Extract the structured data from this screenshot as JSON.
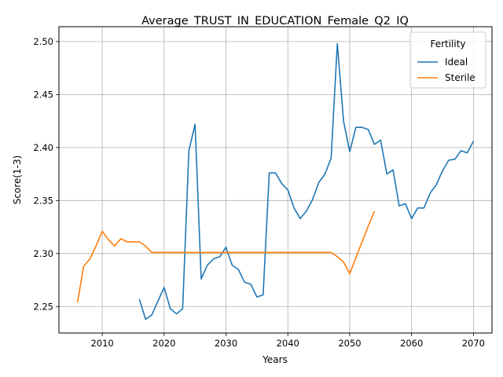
{
  "chart_data": {
    "type": "line",
    "title": "Average_TRUST_IN_EDUCATION_Female_Q2_IQ",
    "xlabel": "Years",
    "ylabel": "Score(1-3)",
    "xlim": [
      2003,
      2073
    ],
    "ylim": [
      2.225,
      2.514
    ],
    "xticks": [
      2010,
      2020,
      2030,
      2040,
      2050,
      2060,
      2070
    ],
    "yticks": [
      2.25,
      2.3,
      2.35,
      2.4,
      2.45,
      2.5
    ],
    "xtick_labels": [
      "2010",
      "2020",
      "2030",
      "2040",
      "2050",
      "2060",
      "2070"
    ],
    "ytick_labels": [
      "2.25",
      "2.30",
      "2.35",
      "2.40",
      "2.45",
      "2.50"
    ],
    "grid": true,
    "legend": {
      "title": "Fertility",
      "position": "top-right"
    },
    "series": [
      {
        "name": "Ideal",
        "color": "#1f77b4",
        "x": [
          2016,
          2017,
          2018,
          2019,
          2020,
          2021,
          2022,
          2023,
          2024,
          2025,
          2026,
          2027,
          2028,
          2029,
          2030,
          2031,
          2032,
          2033,
          2034,
          2035,
          2036,
          2037,
          2038,
          2039,
          2040,
          2041,
          2042,
          2043,
          2044,
          2045,
          2046,
          2047,
          2048,
          2049,
          2050,
          2051,
          2052,
          2053,
          2054,
          2055,
          2056,
          2057,
          2058,
          2059,
          2060,
          2061,
          2062,
          2063,
          2064,
          2065,
          2066,
          2067,
          2068,
          2069,
          2070
        ],
        "y": [
          2.257,
          2.238,
          2.242,
          2.255,
          2.268,
          2.248,
          2.243,
          2.248,
          2.397,
          2.422,
          2.276,
          2.289,
          2.295,
          2.297,
          2.306,
          2.289,
          2.285,
          2.273,
          2.271,
          2.259,
          2.261,
          2.376,
          2.376,
          2.366,
          2.36,
          2.343,
          2.333,
          2.34,
          2.351,
          2.367,
          2.375,
          2.39,
          2.498,
          2.425,
          2.396,
          2.419,
          2.419,
          2.417,
          2.403,
          2.407,
          2.375,
          2.379,
          2.345,
          2.347,
          2.333,
          2.343,
          2.343,
          2.357,
          2.365,
          2.378,
          2.388,
          2.389,
          2.397,
          2.395,
          2.406
        ]
      },
      {
        "name": "Sterile",
        "color": "#ff7f0e",
        "x": [
          2006,
          2007,
          2008,
          2009,
          2010,
          2011,
          2012,
          2013,
          2014,
          2015,
          2016,
          2017,
          2018,
          2019,
          2020,
          2021,
          2022,
          2023,
          2024,
          2025,
          2026,
          2027,
          2028,
          2029,
          2030,
          2031,
          2032,
          2033,
          2034,
          2035,
          2036,
          2037,
          2038,
          2039,
          2040,
          2041,
          2042,
          2043,
          2044,
          2045,
          2046,
          2047,
          2048,
          2049,
          2050,
          2051,
          2052,
          2053,
          2054
        ],
        "y": [
          2.254,
          2.288,
          2.295,
          2.307,
          2.321,
          2.313,
          2.307,
          2.314,
          2.311,
          2.311,
          2.311,
          2.307,
          2.301,
          2.301,
          2.301,
          2.301,
          2.301,
          2.301,
          2.301,
          2.301,
          2.301,
          2.301,
          2.301,
          2.301,
          2.301,
          2.301,
          2.301,
          2.301,
          2.301,
          2.301,
          2.301,
          2.301,
          2.301,
          2.301,
          2.301,
          2.301,
          2.301,
          2.301,
          2.301,
          2.301,
          2.301,
          2.301,
          2.297,
          2.292,
          2.281,
          2.296,
          2.311,
          2.326,
          2.34
        ]
      }
    ]
  }
}
